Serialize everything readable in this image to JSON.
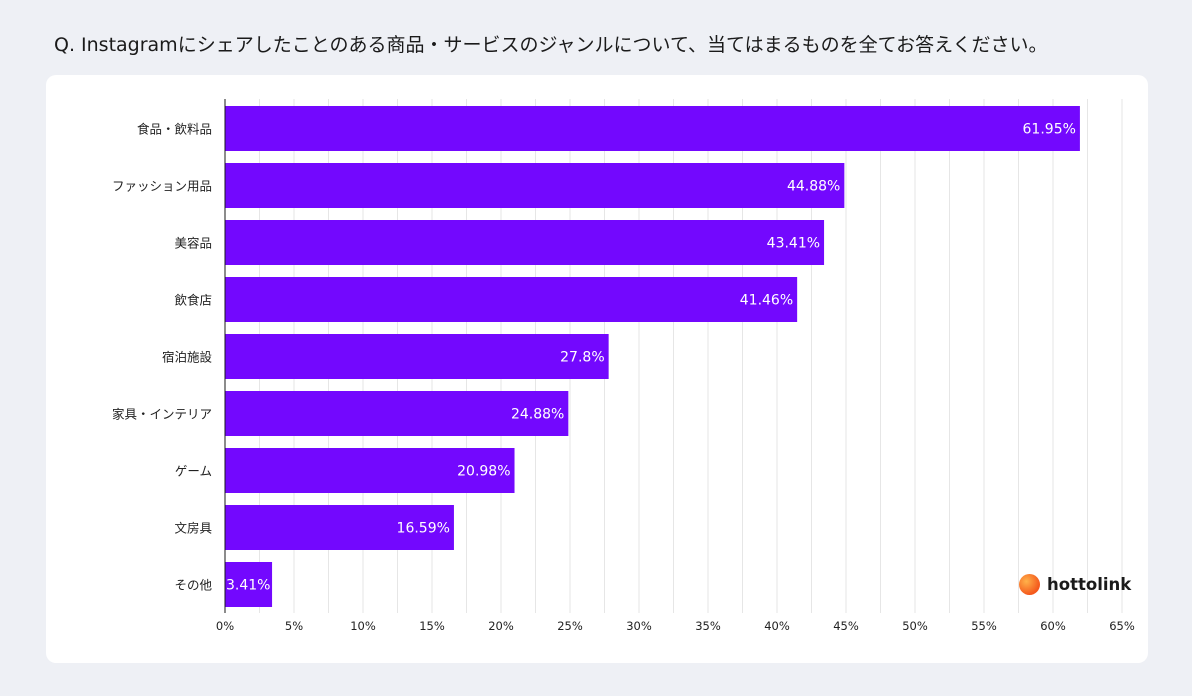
{
  "question": "Q. Instagramにシェアしたことのある商品・サービスのジャンルについて、当てはまるものを全てお答えください。",
  "brand": {
    "name": "hottolink",
    "logo_icon": "hottolink-logo-icon"
  },
  "colors": {
    "bar": "#7308fe",
    "grid": "#e6e6e6",
    "axis": "#1a1a1a"
  },
  "chart_data": {
    "type": "bar",
    "orientation": "horizontal",
    "title": "",
    "xlabel": "",
    "ylabel": "",
    "categories": [
      "食品・飲料品",
      "ファッション用品",
      "美容品",
      "飲食店",
      "宿泊施設",
      "家具・インテリア",
      "ゲーム",
      "文房具",
      "その他"
    ],
    "values": [
      61.95,
      44.88,
      43.41,
      41.46,
      27.8,
      24.88,
      20.98,
      16.59,
      3.41
    ],
    "value_labels": [
      "61.95%",
      "44.88%",
      "43.41%",
      "41.46%",
      "27.8%",
      "24.88%",
      "20.98%",
      "16.59%",
      "3.41%"
    ],
    "xlim": [
      0,
      65
    ],
    "xticks": [
      0,
      5,
      10,
      15,
      20,
      25,
      30,
      35,
      40,
      45,
      50,
      55,
      60,
      65
    ],
    "xtick_labels": [
      "0%",
      "5%",
      "10%",
      "15%",
      "20%",
      "25%",
      "30%",
      "35%",
      "40%",
      "45%",
      "50%",
      "55%",
      "60%",
      "65%"
    ],
    "grid": true
  }
}
